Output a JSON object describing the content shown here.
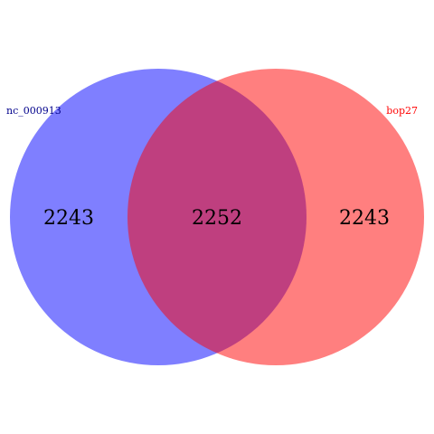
{
  "venn": {
    "sets": [
      {
        "name": "nc_000913",
        "color": "#0000ff",
        "label_color": "#00008b"
      },
      {
        "name": "bop27",
        "color": "#ff0000",
        "label_color": "#ff0000"
      }
    ],
    "counts": {
      "left_only": "2243",
      "intersection": "2252",
      "right_only": "2243"
    },
    "fill_opacity": 0.5
  }
}
